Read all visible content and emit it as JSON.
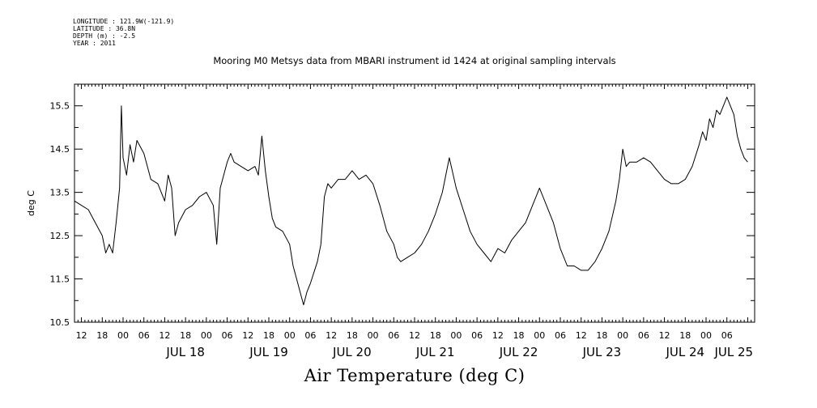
{
  "header": {
    "lines": [
      "LONGITUDE : 121.9W(-121.9)",
      "LATITUDE : 36.8N",
      "DEPTH (m) : -2.5",
      "YEAR : 2011"
    ],
    "title": "Mooring M0 Metsys data from MBARI instrument id 1424 at original sampling intervals"
  },
  "chart_data": {
    "type": "line",
    "title": "Mooring M0 Metsys data from MBARI instrument id 1424 at original sampling intervals",
    "subtitle": "Air Temperature (deg C)",
    "ylabel": "deg C",
    "xlabel": "",
    "ylim": [
      10.5,
      16.0
    ],
    "xlim": [
      "2011-07-17 04:00",
      "2011-07-25 08:00"
    ],
    "ytick_labels": [
      "10.5",
      "11.5",
      "12.5",
      "13.5",
      "14.5",
      "15.5"
    ],
    "hour_tick_labels": [
      "12",
      "18",
      "00",
      "06",
      "12",
      "18",
      "00",
      "06",
      "12",
      "18",
      "00",
      "06",
      "12",
      "18",
      "00",
      "06",
      "12",
      "18",
      "00",
      "06",
      "12",
      "18",
      "00",
      "06",
      "12",
      "18",
      "00",
      "06",
      "12",
      "18",
      "00",
      "06"
    ],
    "day_labels": [
      "JUL 18",
      "JUL 19",
      "JUL 20",
      "JUL 21",
      "JUL 22",
      "JUL 23",
      "JUL 24",
      "JUL 25"
    ],
    "series": [
      {
        "values": [
          [
            "2011-07-17 04:00",
            13.3
          ],
          [
            "2011-07-17 06:00",
            13.2
          ],
          [
            "2011-07-17 08:00",
            13.1
          ],
          [
            "2011-07-17 10:00",
            12.8
          ],
          [
            "2011-07-17 12:00",
            12.5
          ],
          [
            "2011-07-17 13:00",
            12.1
          ],
          [
            "2011-07-17 14:00",
            12.3
          ],
          [
            "2011-07-17 15:00",
            12.1
          ],
          [
            "2011-07-17 16:00",
            12.8
          ],
          [
            "2011-07-17 17:00",
            13.6
          ],
          [
            "2011-07-17 17:30",
            15.5
          ],
          [
            "2011-07-17 18:00",
            14.3
          ],
          [
            "2011-07-17 19:00",
            13.9
          ],
          [
            "2011-07-17 20:00",
            14.6
          ],
          [
            "2011-07-17 21:00",
            14.2
          ],
          [
            "2011-07-17 22:00",
            14.7
          ],
          [
            "2011-07-18 00:00",
            14.4
          ],
          [
            "2011-07-18 02:00",
            13.8
          ],
          [
            "2011-07-18 04:00",
            13.7
          ],
          [
            "2011-07-18 06:00",
            13.3
          ],
          [
            "2011-07-18 07:00",
            13.9
          ],
          [
            "2011-07-18 08:00",
            13.6
          ],
          [
            "2011-07-18 09:00",
            12.5
          ],
          [
            "2011-07-18 10:00",
            12.8
          ],
          [
            "2011-07-18 12:00",
            13.1
          ],
          [
            "2011-07-18 14:00",
            13.2
          ],
          [
            "2011-07-18 16:00",
            13.4
          ],
          [
            "2011-07-18 18:00",
            13.5
          ],
          [
            "2011-07-18 20:00",
            13.2
          ],
          [
            "2011-07-18 21:00",
            12.3
          ],
          [
            "2011-07-18 22:00",
            13.6
          ],
          [
            "2011-07-19 00:00",
            14.2
          ],
          [
            "2011-07-19 01:00",
            14.4
          ],
          [
            "2011-07-19 02:00",
            14.2
          ],
          [
            "2011-07-19 04:00",
            14.1
          ],
          [
            "2011-07-19 06:00",
            14.0
          ],
          [
            "2011-07-19 08:00",
            14.1
          ],
          [
            "2011-07-19 09:00",
            13.9
          ],
          [
            "2011-07-19 10:00",
            14.8
          ],
          [
            "2011-07-19 11:00",
            14.0
          ],
          [
            "2011-07-19 12:00",
            13.4
          ],
          [
            "2011-07-19 13:00",
            12.9
          ],
          [
            "2011-07-19 14:00",
            12.7
          ],
          [
            "2011-07-19 16:00",
            12.6
          ],
          [
            "2011-07-19 18:00",
            12.3
          ],
          [
            "2011-07-19 19:00",
            11.8
          ],
          [
            "2011-07-19 20:00",
            11.5
          ],
          [
            "2011-07-19 22:00",
            10.9
          ],
          [
            "2011-07-19 23:00",
            11.2
          ],
          [
            "2011-07-20 00:00",
            11.4
          ],
          [
            "2011-07-20 02:00",
            11.9
          ],
          [
            "2011-07-20 03:00",
            12.3
          ],
          [
            "2011-07-20 04:00",
            13.4
          ],
          [
            "2011-07-20 05:00",
            13.7
          ],
          [
            "2011-07-20 06:00",
            13.6
          ],
          [
            "2011-07-20 08:00",
            13.8
          ],
          [
            "2011-07-20 10:00",
            13.8
          ],
          [
            "2011-07-20 12:00",
            14.0
          ],
          [
            "2011-07-20 14:00",
            13.8
          ],
          [
            "2011-07-20 16:00",
            13.9
          ],
          [
            "2011-07-20 18:00",
            13.7
          ],
          [
            "2011-07-20 20:00",
            13.2
          ],
          [
            "2011-07-20 22:00",
            12.6
          ],
          [
            "2011-07-21 00:00",
            12.3
          ],
          [
            "2011-07-21 01:00",
            12.0
          ],
          [
            "2011-07-21 02:00",
            11.9
          ],
          [
            "2011-07-21 04:00",
            12.0
          ],
          [
            "2011-07-21 06:00",
            12.1
          ],
          [
            "2011-07-21 08:00",
            12.3
          ],
          [
            "2011-07-21 10:00",
            12.6
          ],
          [
            "2011-07-21 12:00",
            13.0
          ],
          [
            "2011-07-21 14:00",
            13.5
          ],
          [
            "2011-07-21 16:00",
            14.3
          ],
          [
            "2011-07-21 18:00",
            13.6
          ],
          [
            "2011-07-21 20:00",
            13.1
          ],
          [
            "2011-07-21 22:00",
            12.6
          ],
          [
            "2011-07-22 00:00",
            12.3
          ],
          [
            "2011-07-22 02:00",
            12.1
          ],
          [
            "2011-07-22 04:00",
            11.9
          ],
          [
            "2011-07-22 06:00",
            12.2
          ],
          [
            "2011-07-22 08:00",
            12.1
          ],
          [
            "2011-07-22 10:00",
            12.4
          ],
          [
            "2011-07-22 12:00",
            12.6
          ],
          [
            "2011-07-22 14:00",
            12.8
          ],
          [
            "2011-07-22 16:00",
            13.2
          ],
          [
            "2011-07-22 18:00",
            13.6
          ],
          [
            "2011-07-22 19:00",
            13.4
          ],
          [
            "2011-07-22 20:00",
            13.2
          ],
          [
            "2011-07-22 22:00",
            12.8
          ],
          [
            "2011-07-23 00:00",
            12.2
          ],
          [
            "2011-07-23 02:00",
            11.8
          ],
          [
            "2011-07-23 04:00",
            11.8
          ],
          [
            "2011-07-23 06:00",
            11.7
          ],
          [
            "2011-07-23 08:00",
            11.7
          ],
          [
            "2011-07-23 10:00",
            11.9
          ],
          [
            "2011-07-23 12:00",
            12.2
          ],
          [
            "2011-07-23 14:00",
            12.6
          ],
          [
            "2011-07-23 16:00",
            13.3
          ],
          [
            "2011-07-23 17:00",
            13.8
          ],
          [
            "2011-07-23 18:00",
            14.5
          ],
          [
            "2011-07-23 19:00",
            14.1
          ],
          [
            "2011-07-23 20:00",
            14.2
          ],
          [
            "2011-07-23 22:00",
            14.2
          ],
          [
            "2011-07-24 00:00",
            14.3
          ],
          [
            "2011-07-24 02:00",
            14.2
          ],
          [
            "2011-07-24 04:00",
            14.0
          ],
          [
            "2011-07-24 06:00",
            13.8
          ],
          [
            "2011-07-24 08:00",
            13.7
          ],
          [
            "2011-07-24 10:00",
            13.7
          ],
          [
            "2011-07-24 12:00",
            13.8
          ],
          [
            "2011-07-24 14:00",
            14.1
          ],
          [
            "2011-07-24 16:00",
            14.6
          ],
          [
            "2011-07-24 17:00",
            14.9
          ],
          [
            "2011-07-24 18:00",
            14.7
          ],
          [
            "2011-07-24 19:00",
            15.2
          ],
          [
            "2011-07-24 20:00",
            15.0
          ],
          [
            "2011-07-24 21:00",
            15.4
          ],
          [
            "2011-07-24 22:00",
            15.3
          ],
          [
            "2011-07-24 23:00",
            15.5
          ],
          [
            "2011-07-25 00:00",
            15.7
          ],
          [
            "2011-07-25 01:00",
            15.5
          ],
          [
            "2011-07-25 02:00",
            15.3
          ],
          [
            "2011-07-25 03:00",
            14.8
          ],
          [
            "2011-07-25 04:00",
            14.5
          ],
          [
            "2011-07-25 05:00",
            14.3
          ],
          [
            "2011-07-25 06:00",
            14.2
          ]
        ]
      }
    ]
  }
}
